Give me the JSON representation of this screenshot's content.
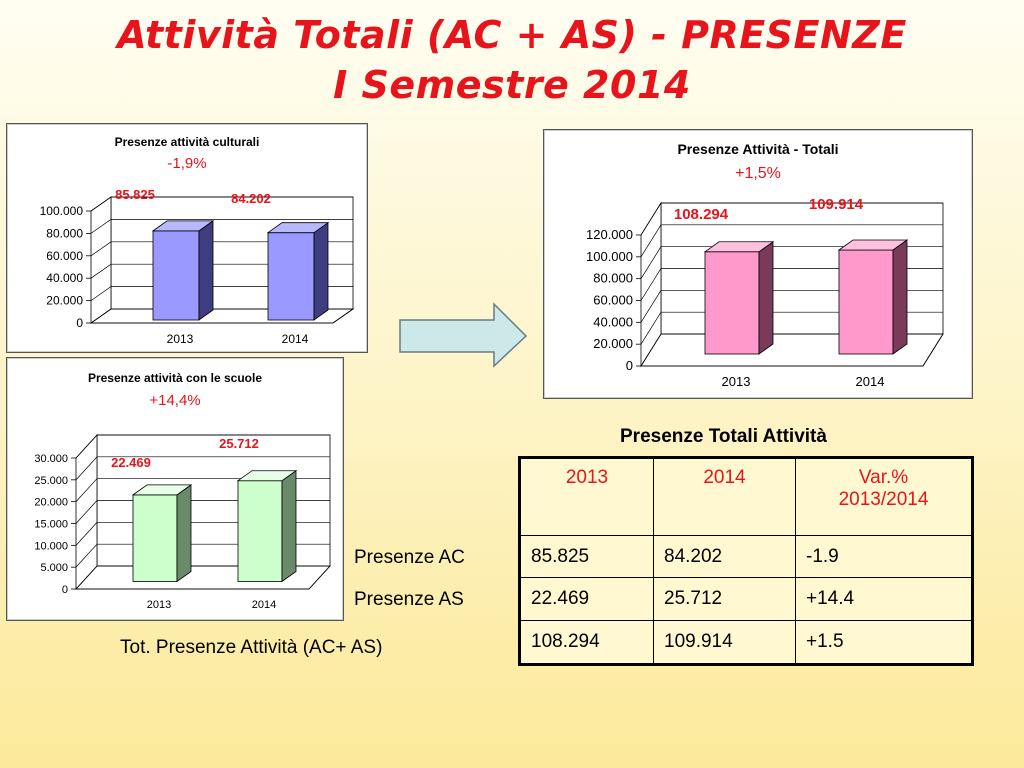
{
  "slide": {
    "title_line1": "Attività Totali (AC + AS) - PRESENZE",
    "title_line2": "I Semestre 2014"
  },
  "colors": {
    "title": "#e8141c",
    "accent_red": "#e8141c"
  },
  "table": {
    "caption": "Presenze Totali Attività",
    "headers": [
      "2013",
      "2014",
      "Var.% 2013/2014"
    ],
    "rows": [
      {
        "label": "Presenze AC",
        "cells": [
          "85.825",
          "84.202",
          "-1.9"
        ]
      },
      {
        "label": "Presenze AS",
        "cells": [
          "22.469",
          "25.712",
          "+14.4"
        ]
      },
      {
        "label": "Tot. Presenze Attività (AC+ AS)",
        "cells": [
          "108.294",
          "109.914",
          "+1.5"
        ]
      }
    ]
  },
  "chart_data": [
    {
      "type": "bar",
      "title": "Presenze attività culturali",
      "subtitle": "-1,9%",
      "categories": [
        "2013",
        "2014"
      ],
      "values": [
        85825,
        84202
      ],
      "data_labels": [
        "85.825",
        "84.202"
      ],
      "ylim": [
        0,
        100000
      ],
      "yticks": [
        "0",
        "20.000",
        "40.000",
        "60.000",
        "80.000",
        "100.000"
      ],
      "bar_color": "#9999ff",
      "side_color": "#3d3d80",
      "top_color": "#b8b8ff",
      "grid": true
    },
    {
      "type": "bar",
      "title": "Presenze attività con le scuole",
      "subtitle": "+14,4%",
      "categories": [
        "2013",
        "2014"
      ],
      "values": [
        22469,
        25712
      ],
      "data_labels": [
        "22.469",
        "25.712"
      ],
      "ylim": [
        0,
        30000
      ],
      "yticks": [
        "0",
        "5.000",
        "10.000",
        "15.000",
        "20.000",
        "25.000",
        "30.000"
      ],
      "bar_color": "#ccffcc",
      "side_color": "#6a8a6a",
      "top_color": "#e6ffe6",
      "grid": true
    },
    {
      "type": "bar",
      "title": "Presenze Attività - Totali",
      "subtitle": "+1,5%",
      "categories": [
        "2013",
        "2014"
      ],
      "values": [
        108294,
        109914
      ],
      "data_labels": [
        "108.294",
        "109.914"
      ],
      "ylim": [
        0,
        120000
      ],
      "yticks": [
        "0",
        "20.000",
        "40.000",
        "60.000",
        "80.000",
        "100.000",
        "120.000"
      ],
      "bar_color": "#ff99cc",
      "side_color": "#7a3a5a",
      "top_color": "#ffc0e0",
      "grid": true
    }
  ]
}
